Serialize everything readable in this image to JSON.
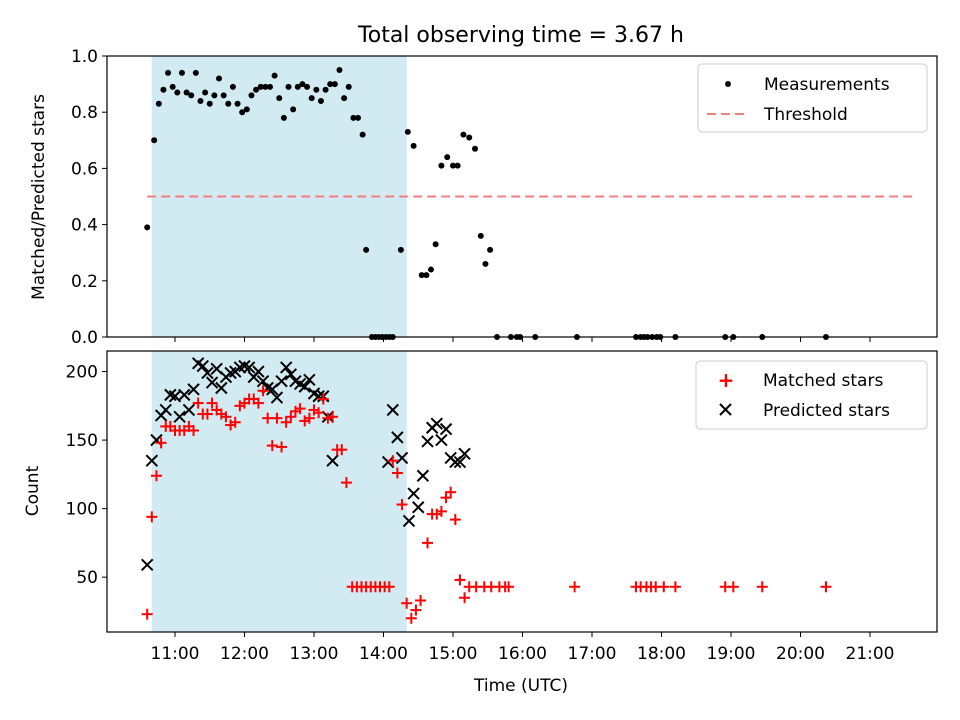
{
  "figure": {
    "title": "Total observing time = 3.67 h",
    "xlabel": "Time (UTC)",
    "x_ticks": [
      "11:00",
      "12:00",
      "13:00",
      "14:00",
      "15:00",
      "16:00",
      "17:00",
      "18:00",
      "19:00",
      "20:00",
      "21:00"
    ],
    "shaded_window": {
      "start": "10:40",
      "end": "14:20",
      "color": "#add8e6"
    }
  },
  "chart_data": [
    {
      "type": "scatter",
      "ylabel": "Matched/Predicted stars",
      "ylim": [
        0,
        1.0
      ],
      "y_ticks": [
        "0.0",
        "0.2",
        "0.4",
        "0.6",
        "0.8",
        "1.0"
      ],
      "legend_position": "upper right",
      "threshold": {
        "name": "Threshold",
        "value": 0.5,
        "color": "#f08080",
        "style": "dashed"
      },
      "series": [
        {
          "name": "Measurements",
          "color": "#000000",
          "marker": "dot",
          "points": [
            [
              "10:36",
              0.39
            ],
            [
              "10:42",
              0.7
            ],
            [
              "10:46",
              0.83
            ],
            [
              "10:50",
              0.88
            ],
            [
              "10:54",
              0.94
            ],
            [
              "10:58",
              0.89
            ],
            [
              "11:02",
              0.87
            ],
            [
              "11:06",
              0.94
            ],
            [
              "11:10",
              0.87
            ],
            [
              "11:14",
              0.86
            ],
            [
              "11:18",
              0.94
            ],
            [
              "11:22",
              0.84
            ],
            [
              "11:26",
              0.87
            ],
            [
              "11:30",
              0.83
            ],
            [
              "11:34",
              0.86
            ],
            [
              "11:38",
              0.92
            ],
            [
              "11:42",
              0.86
            ],
            [
              "11:46",
              0.83
            ],
            [
              "11:50",
              0.89
            ],
            [
              "11:54",
              0.83
            ],
            [
              "11:58",
              0.8
            ],
            [
              "12:02",
              0.81
            ],
            [
              "12:06",
              0.86
            ],
            [
              "12:10",
              0.88
            ],
            [
              "12:14",
              0.89
            ],
            [
              "12:18",
              0.89
            ],
            [
              "12:22",
              0.89
            ],
            [
              "12:26",
              0.93
            ],
            [
              "12:30",
              0.85
            ],
            [
              "12:34",
              0.78
            ],
            [
              "12:38",
              0.89
            ],
            [
              "12:42",
              0.81
            ],
            [
              "12:46",
              0.89
            ],
            [
              "12:50",
              0.9
            ],
            [
              "12:54",
              0.89
            ],
            [
              "12:58",
              0.85
            ],
            [
              "13:02",
              0.88
            ],
            [
              "13:06",
              0.84
            ],
            [
              "13:10",
              0.88
            ],
            [
              "13:14",
              0.9
            ],
            [
              "13:18",
              0.9
            ],
            [
              "13:22",
              0.95
            ],
            [
              "13:26",
              0.85
            ],
            [
              "13:30",
              0.89
            ],
            [
              "13:34",
              0.78
            ],
            [
              "13:38",
              0.78
            ],
            [
              "13:42",
              0.72
            ],
            [
              "13:45",
              0.31
            ],
            [
              "13:50",
              0.0
            ],
            [
              "13:53",
              0.0
            ],
            [
              "13:56",
              0.0
            ],
            [
              "13:59",
              0.0
            ],
            [
              "14:02",
              0.0
            ],
            [
              "14:05",
              0.0
            ],
            [
              "14:08",
              0.0
            ],
            [
              "14:15",
              0.31
            ],
            [
              "14:21",
              0.73
            ],
            [
              "14:26",
              0.68
            ],
            [
              "14:33",
              0.22
            ],
            [
              "14:37",
              0.22
            ],
            [
              "14:41",
              0.24
            ],
            [
              "14:45",
              0.33
            ],
            [
              "14:50",
              0.61
            ],
            [
              "14:55",
              0.64
            ],
            [
              "15:00",
              0.61
            ],
            [
              "15:04",
              0.61
            ],
            [
              "15:09",
              0.72
            ],
            [
              "15:14",
              0.71
            ],
            [
              "15:19",
              0.67
            ],
            [
              "15:24",
              0.36
            ],
            [
              "15:28",
              0.26
            ],
            [
              "15:32",
              0.31
            ],
            [
              "15:38",
              0.0
            ],
            [
              "15:50",
              0.0
            ],
            [
              "15:55",
              0.0
            ],
            [
              "15:58",
              0.0
            ],
            [
              "16:11",
              0.0
            ],
            [
              "16:47",
              0.0
            ],
            [
              "17:38",
              0.0
            ],
            [
              "17:42",
              0.0
            ],
            [
              "17:45",
              0.0
            ],
            [
              "17:48",
              0.0
            ],
            [
              "17:52",
              0.0
            ],
            [
              "17:56",
              0.0
            ],
            [
              "17:59",
              0.0
            ],
            [
              "18:12",
              0.0
            ],
            [
              "18:55",
              0.0
            ],
            [
              "19:02",
              0.0
            ],
            [
              "19:27",
              0.0
            ],
            [
              "20:22",
              0.0
            ]
          ]
        }
      ]
    },
    {
      "type": "scatter",
      "ylabel": "Count",
      "ylim": [
        10,
        215
      ],
      "y_ticks": [
        "50",
        "100",
        "150",
        "200"
      ],
      "legend_position": "upper right",
      "series": [
        {
          "name": "Matched stars",
          "color": "#ff0000",
          "marker": "plus",
          "points": [
            [
              "10:36",
              23
            ],
            [
              "10:40",
              94
            ],
            [
              "10:44",
              124
            ],
            [
              "10:48",
              148
            ],
            [
              "10:52",
              160
            ],
            [
              "10:56",
              160
            ],
            [
              "11:00",
              157
            ],
            [
              "11:04",
              157
            ],
            [
              "11:08",
              157
            ],
            [
              "11:12",
              160
            ],
            [
              "11:16",
              157
            ],
            [
              "11:20",
              177
            ],
            [
              "11:24",
              169
            ],
            [
              "11:28",
              169
            ],
            [
              "11:32",
              177
            ],
            [
              "11:36",
              172
            ],
            [
              "11:40",
              169
            ],
            [
              "11:44",
              167
            ],
            [
              "11:48",
              161
            ],
            [
              "11:52",
              163
            ],
            [
              "11:56",
              175
            ],
            [
              "12:00",
              177
            ],
            [
              "12:04",
              180
            ],
            [
              "12:08",
              180
            ],
            [
              "12:12",
              177
            ],
            [
              "12:16",
              186
            ],
            [
              "12:20",
              166
            ],
            [
              "12:24",
              146
            ],
            [
              "12:28",
              166
            ],
            [
              "12:32",
              145
            ],
            [
              "12:36",
              163
            ],
            [
              "12:40",
              167
            ],
            [
              "12:44",
              171
            ],
            [
              "12:48",
              173
            ],
            [
              "12:52",
              164
            ],
            [
              "12:56",
              166
            ],
            [
              "13:00",
              172
            ],
            [
              "13:04",
              170
            ],
            [
              "13:08",
              180
            ],
            [
              "13:12",
              166
            ],
            [
              "13:16",
              167
            ],
            [
              "13:20",
              143
            ],
            [
              "13:24",
              143
            ],
            [
              "13:28",
              119
            ],
            [
              "13:33",
              43
            ],
            [
              "13:37",
              43
            ],
            [
              "13:41",
              43
            ],
            [
              "13:45",
              43
            ],
            [
              "13:49",
              43
            ],
            [
              "13:53",
              43
            ],
            [
              "13:57",
              43
            ],
            [
              "14:01",
              43
            ],
            [
              "14:05",
              43
            ],
            [
              "14:08",
              135
            ],
            [
              "14:12",
              126
            ],
            [
              "14:16",
              103
            ],
            [
              "14:20",
              31
            ],
            [
              "14:24",
              20
            ],
            [
              "14:28",
              26
            ],
            [
              "14:32",
              33
            ],
            [
              "14:38",
              75
            ],
            [
              "14:42",
              96
            ],
            [
              "14:46",
              96
            ],
            [
              "14:50",
              98
            ],
            [
              "14:54",
              108
            ],
            [
              "14:58",
              112
            ],
            [
              "15:02",
              92
            ],
            [
              "15:06",
              48
            ],
            [
              "15:10",
              35
            ],
            [
              "15:14",
              43
            ],
            [
              "15:20",
              43
            ],
            [
              "15:27",
              43
            ],
            [
              "15:33",
              43
            ],
            [
              "15:40",
              43
            ],
            [
              "15:45",
              43
            ],
            [
              "15:48",
              43
            ],
            [
              "16:45",
              43
            ],
            [
              "17:38",
              43
            ],
            [
              "17:42",
              43
            ],
            [
              "17:47",
              43
            ],
            [
              "17:51",
              43
            ],
            [
              "17:55",
              43
            ],
            [
              "18:02",
              43
            ],
            [
              "18:12",
              43
            ],
            [
              "18:55",
              43
            ],
            [
              "19:02",
              43
            ],
            [
              "19:27",
              43
            ],
            [
              "20:22",
              43
            ]
          ]
        },
        {
          "name": "Predicted stars",
          "color": "#000000",
          "marker": "x",
          "points": [
            [
              "10:36",
              59
            ],
            [
              "10:40",
              135
            ],
            [
              "10:44",
              150
            ],
            [
              "10:48",
              168
            ],
            [
              "10:52",
              172
            ],
            [
              "10:56",
              183
            ],
            [
              "11:00",
              182
            ],
            [
              "11:04",
              167
            ],
            [
              "11:08",
              183
            ],
            [
              "11:12",
              172
            ],
            [
              "11:16",
              187
            ],
            [
              "11:20",
              206
            ],
            [
              "11:24",
              204
            ],
            [
              "11:28",
              199
            ],
            [
              "11:32",
              192
            ],
            [
              "11:36",
              202
            ],
            [
              "11:40",
              188
            ],
            [
              "11:44",
              196
            ],
            [
              "11:48",
              199
            ],
            [
              "11:52",
              200
            ],
            [
              "11:56",
              203
            ],
            [
              "12:00",
              204
            ],
            [
              "12:04",
              203
            ],
            [
              "12:08",
              196
            ],
            [
              "12:12",
              200
            ],
            [
              "12:16",
              193
            ],
            [
              "12:20",
              188
            ],
            [
              "12:24",
              187
            ],
            [
              "12:28",
              181
            ],
            [
              "12:32",
              193
            ],
            [
              "12:36",
              203
            ],
            [
              "12:40",
              198
            ],
            [
              "12:44",
              193
            ],
            [
              "12:48",
              191
            ],
            [
              "12:52",
              189
            ],
            [
              "12:56",
              194
            ],
            [
              "13:00",
              184
            ],
            [
              "13:04",
              182
            ],
            [
              "13:08",
              182
            ],
            [
              "13:12",
              167
            ],
            [
              "13:16",
              135
            ],
            [
              "14:04",
              134
            ],
            [
              "14:08",
              172
            ],
            [
              "14:12",
              152
            ],
            [
              "14:16",
              137
            ],
            [
              "14:22",
              91
            ],
            [
              "14:26",
              111
            ],
            [
              "14:30",
              101
            ],
            [
              "14:34",
              124
            ],
            [
              "14:38",
              149
            ],
            [
              "14:42",
              159
            ],
            [
              "14:46",
              162
            ],
            [
              "14:50",
              150
            ],
            [
              "14:54",
              158
            ],
            [
              "14:58",
              137
            ],
            [
              "15:02",
              134
            ],
            [
              "15:06",
              134
            ],
            [
              "15:10",
              140
            ]
          ]
        }
      ]
    }
  ]
}
